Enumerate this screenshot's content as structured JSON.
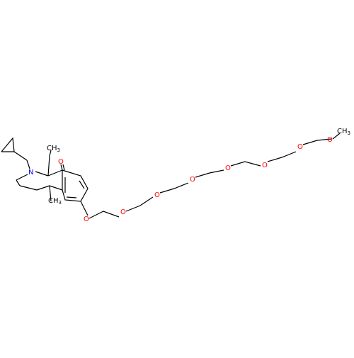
{
  "structure": {
    "atoms": {
      "nitrogen": "N",
      "ketone_oxygen": "O",
      "ether_oxygen": "O",
      "methyl_top": "CH",
      "methyl_top_sub": "3",
      "methyl_bottom": "CH",
      "methyl_bottom_sub": "3",
      "terminal_methyl": "CH",
      "terminal_methyl_sub": "3"
    },
    "peg_ether_count": 8
  },
  "colors": {
    "bond": "#000000",
    "nitrogen": "#0000ff",
    "oxygen": "#ff0000",
    "carbon": "#000000",
    "background": "#ffffff"
  }
}
